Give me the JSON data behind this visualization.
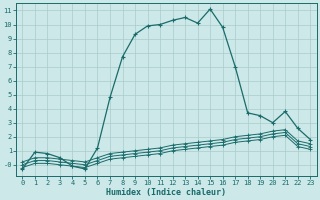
{
  "xlabel": "Humidex (Indice chaleur)",
  "bg_color": "#cce8e8",
  "grid_color": "#aacaca",
  "line_color": "#1a6b6b",
  "xlim": [
    -0.5,
    23.5
  ],
  "ylim": [
    -0.8,
    11.5
  ],
  "yticks": [
    0,
    1,
    2,
    3,
    4,
    5,
    6,
    7,
    8,
    9,
    10,
    11
  ],
  "ytick_labels": [
    "-0",
    "1",
    "2",
    "3",
    "4",
    "5",
    "6",
    "7",
    "8",
    "9",
    "10",
    "11"
  ],
  "xticks": [
    0,
    1,
    2,
    3,
    4,
    5,
    6,
    7,
    8,
    9,
    10,
    11,
    12,
    13,
    14,
    15,
    16,
    17,
    18,
    19,
    20,
    21,
    22,
    23
  ],
  "series_flat": [
    {
      "x": [
        0,
        1,
        2,
        3,
        4,
        5,
        6,
        7,
        8,
        9,
        10,
        11,
        12,
        13,
        14,
        15,
        16,
        17,
        18,
        19,
        20,
        21,
        22,
        23
      ],
      "y": [
        0.2,
        0.5,
        0.5,
        0.4,
        0.3,
        0.2,
        0.5,
        0.8,
        0.9,
        1.0,
        1.1,
        1.2,
        1.4,
        1.5,
        1.6,
        1.7,
        1.8,
        2.0,
        2.1,
        2.2,
        2.4,
        2.5,
        1.7,
        1.5
      ]
    },
    {
      "x": [
        0,
        1,
        2,
        3,
        4,
        5,
        6,
        7,
        8,
        9,
        10,
        11,
        12,
        13,
        14,
        15,
        16,
        17,
        18,
        19,
        20,
        21,
        22,
        23
      ],
      "y": [
        0.0,
        0.3,
        0.3,
        0.2,
        0.1,
        0.0,
        0.3,
        0.6,
        0.7,
        0.8,
        0.9,
        1.0,
        1.2,
        1.3,
        1.4,
        1.5,
        1.6,
        1.8,
        1.9,
        2.0,
        2.2,
        2.3,
        1.5,
        1.3
      ]
    },
    {
      "x": [
        0,
        1,
        2,
        3,
        4,
        5,
        6,
        7,
        8,
        9,
        10,
        11,
        12,
        13,
        14,
        15,
        16,
        17,
        18,
        19,
        20,
        21,
        22,
        23
      ],
      "y": [
        -0.2,
        0.1,
        0.1,
        0.0,
        -0.1,
        -0.2,
        0.1,
        0.4,
        0.5,
        0.6,
        0.7,
        0.8,
        1.0,
        1.1,
        1.2,
        1.3,
        1.4,
        1.6,
        1.7,
        1.8,
        2.0,
        2.1,
        1.3,
        1.1
      ]
    }
  ],
  "series_main": {
    "x": [
      0,
      1,
      2,
      3,
      4,
      5,
      6,
      7,
      8,
      9,
      10,
      11,
      12,
      13,
      14,
      15,
      16,
      17,
      18,
      19,
      20,
      21,
      22,
      23
    ],
    "y": [
      -0.3,
      0.9,
      0.8,
      0.5,
      -0.1,
      -0.3,
      1.2,
      4.8,
      7.7,
      9.3,
      9.9,
      10.0,
      10.3,
      10.5,
      10.1,
      11.1,
      9.8,
      7.0,
      3.7,
      3.5,
      3.0,
      3.8,
      2.6,
      1.8
    ]
  }
}
